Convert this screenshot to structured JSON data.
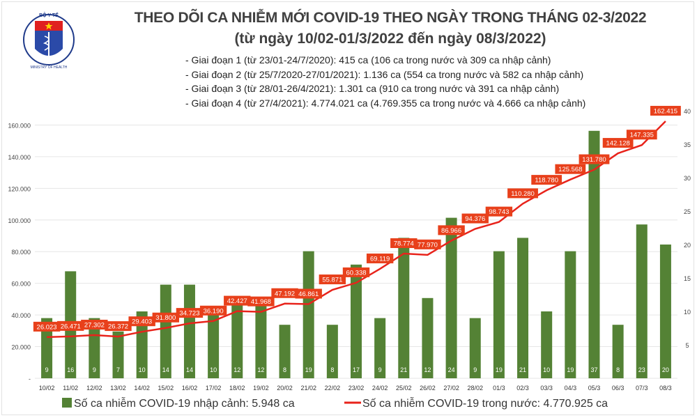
{
  "header": {
    "logo_text": "BỘ Y TẾ - MINISTRY OF HEALTH",
    "title": "THEO DÕI CA NHIỄM MỚI COVID-19 THEO NGÀY TRONG THÁNG 02-3/2022",
    "subtitle": "(từ ngày 10/02-01/3/2022 đến ngày 08/3/2022)",
    "phases": [
      "- Giai đoạn 1 (từ 23/01-24/7/2020): 415 ca (106 ca trong nước và 309 ca nhập cảnh)",
      "- Giai đoạn 2 (từ 25/7/2020-27/01/2021): 1.136 ca (554 ca trong nước và 582 ca nhập cảnh)",
      "- Giai đoạn 3 (từ 28/01-26/4/2021): 1.301 ca (910 ca trong nước và 391 ca nhập cảnh)",
      "- Giai đoạn 4 (từ 27/4/2021): 4.774.021 ca (4.769.355 ca trong nước và 4.666 ca nhập cảnh)"
    ]
  },
  "colors": {
    "bar": "#548235",
    "line": "#e8231b",
    "label_bg": "#e8401b"
  },
  "chart_data": {
    "type": "bar+line",
    "categories": [
      "10/02",
      "11/02",
      "12/02",
      "13/02",
      "14/02",
      "15/02",
      "16/02",
      "17/02",
      "18/02",
      "19/02",
      "20/02",
      "21/02",
      "22/02",
      "23/02",
      "24/02",
      "25/02",
      "26/02",
      "27/02",
      "28/02",
      "01/3",
      "02/3",
      "03/3",
      "04/3",
      "05/3",
      "06/3",
      "07/3",
      "08/3"
    ],
    "series": [
      {
        "name": "Số ca nhiễm COVID-19 nhập cảnh: 5.948 ca",
        "type": "bar",
        "axis": "right",
        "values": [
          9,
          16,
          9,
          7,
          10,
          14,
          14,
          10,
          12,
          12,
          8,
          19,
          8,
          17,
          9,
          21,
          12,
          24,
          9,
          19,
          21,
          10,
          19,
          37,
          8,
          23,
          20
        ]
      },
      {
        "name": "Số ca nhiễm COVID-19 trong nước: 4.770.925 ca",
        "type": "line",
        "axis": "left",
        "values": [
          26023,
          26471,
          27302,
          26372,
          29403,
          31800,
          34723,
          36190,
          42427,
          41968,
          47192,
          46861,
          55871,
          60338,
          69119,
          78774,
          77970,
          86966,
          94376,
          98743,
          110280,
          118780,
          125568,
          131780,
          142128,
          147335,
          162415
        ],
        "labels": [
          "26.023",
          "26.471",
          "27.302",
          "26.372",
          "29.403",
          "31.800",
          "34.723",
          "36.190",
          "42.427",
          "41.968",
          "47.192",
          "46.861",
          "55.871",
          "60.338",
          "69.119",
          "78.774",
          "77.970",
          "86.966",
          "94.376",
          "98.743",
          "110.280",
          "118.780",
          "125.568",
          "131.780",
          "142.128",
          "147.335",
          "162.415"
        ]
      }
    ],
    "left_axis": {
      "ticks": [
        0,
        20000,
        40000,
        60000,
        80000,
        100000,
        120000,
        140000,
        160000
      ],
      "tick_labels": [
        "-",
        "20.000",
        "40.000",
        "60.000",
        "80.000",
        "100.000",
        "120.000",
        "140.000",
        "160.000"
      ]
    },
    "right_axis": {
      "ticks": [
        5,
        10,
        15,
        20,
        25,
        30,
        35,
        40
      ],
      "tick_labels": [
        "5",
        "10",
        "15",
        "20",
        "25",
        "30",
        "35",
        "40"
      ]
    },
    "ylim_left": [
      0,
      169000
    ],
    "ylim_right": [
      0,
      40
    ],
    "grid": true,
    "legend": "bottom"
  }
}
